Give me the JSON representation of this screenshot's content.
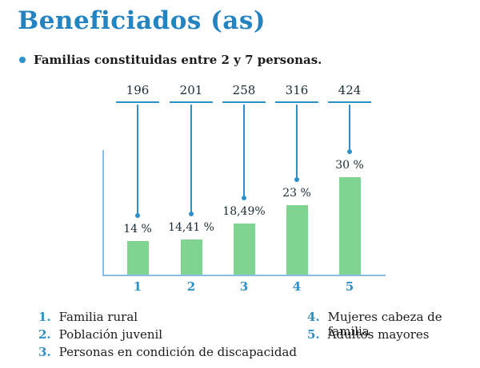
{
  "title": "Beneficiados (as)",
  "subtitle": "Familias constituidas entre 2 y 7 personas.",
  "colors": {
    "title_blue": "#2484c2",
    "accent_blue": "#2e8fc9",
    "bar_green": "#7fd492",
    "text_dark": "#1c2b33"
  },
  "chart_data": {
    "type": "bar",
    "categories": [
      "1",
      "2",
      "3",
      "4",
      "5"
    ],
    "values": [
      14,
      14.41,
      18.49,
      23,
      30
    ],
    "value_labels": [
      "14 %",
      "14,41 %",
      "18,49%",
      "23 %",
      "30 %"
    ],
    "counts": [
      "196",
      "201",
      "258",
      "316",
      "424"
    ],
    "title": "",
    "xlabel": "",
    "ylabel": "",
    "ylim": [
      0,
      35
    ],
    "grid": false,
    "legend_position": "bottom"
  },
  "legend": {
    "left": [
      {
        "num": "1.",
        "label": "Familia rural"
      },
      {
        "num": "2.",
        "label": "Población juvenil"
      },
      {
        "num": "3.",
        "label": "Personas en condición de discapacidad"
      }
    ],
    "right": [
      {
        "num": "4.",
        "label": "Mujeres cabeza de familia"
      },
      {
        "num": "5.",
        "label": "Adultos mayores"
      }
    ]
  }
}
